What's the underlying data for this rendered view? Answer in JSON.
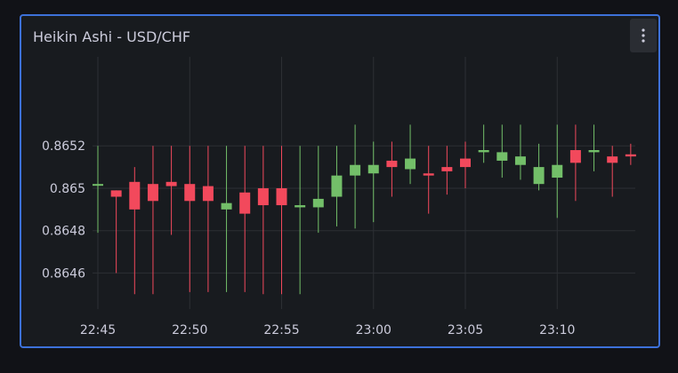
{
  "panel": {
    "title": "Heikin Ashi - USD/CHF",
    "menu_icon": "kebab-vertical-icon"
  },
  "colors": {
    "up": "#73bf69",
    "down": "#f2495c",
    "border_focus": "#3d71d9",
    "grid": "#2c2f34",
    "text": "#ccccdc"
  },
  "chart_data": {
    "type": "candlestick",
    "title": "Heikin Ashi - USD/CHF",
    "ylim": [
      0.86443,
      0.86562
    ],
    "yticks": [
      {
        "value": 0.8646,
        "label": "0.8646"
      },
      {
        "value": 0.8648,
        "label": "0.8648"
      },
      {
        "value": 0.865,
        "label": "0.865"
      },
      {
        "value": 0.8652,
        "label": "0.8652"
      }
    ],
    "xticks": [
      "22:45",
      "22:50",
      "22:55",
      "23:00",
      "23:05",
      "23:10"
    ],
    "grid": true,
    "candles": [
      {
        "time": "22:45",
        "open": 0.86502,
        "high": 0.8652,
        "low": 0.86479,
        "close": 0.86502
      },
      {
        "time": "22:46",
        "open": 0.86499,
        "high": 0.86499,
        "low": 0.8646,
        "close": 0.86496
      },
      {
        "time": "22:47",
        "open": 0.86503,
        "high": 0.8651,
        "low": 0.8645,
        "close": 0.8649
      },
      {
        "time": "22:48",
        "open": 0.86502,
        "high": 0.8652,
        "low": 0.8645,
        "close": 0.86494
      },
      {
        "time": "22:49",
        "open": 0.86503,
        "high": 0.8652,
        "low": 0.86478,
        "close": 0.86501
      },
      {
        "time": "22:50",
        "open": 0.86502,
        "high": 0.8652,
        "low": 0.86451,
        "close": 0.86494
      },
      {
        "time": "22:51",
        "open": 0.86501,
        "high": 0.8652,
        "low": 0.86451,
        "close": 0.86494
      },
      {
        "time": "22:52",
        "open": 0.8649,
        "high": 0.8652,
        "low": 0.86451,
        "close": 0.86493
      },
      {
        "time": "22:53",
        "open": 0.86498,
        "high": 0.8652,
        "low": 0.86451,
        "close": 0.86488
      },
      {
        "time": "22:54",
        "open": 0.865,
        "high": 0.8652,
        "low": 0.8645,
        "close": 0.86492
      },
      {
        "time": "22:55",
        "open": 0.865,
        "high": 0.8652,
        "low": 0.8645,
        "close": 0.86492
      },
      {
        "time": "22:56",
        "open": 0.86491,
        "high": 0.8652,
        "low": 0.8645,
        "close": 0.86492
      },
      {
        "time": "22:57",
        "open": 0.86491,
        "high": 0.8652,
        "low": 0.86479,
        "close": 0.86495
      },
      {
        "time": "22:58",
        "open": 0.86496,
        "high": 0.8652,
        "low": 0.86482,
        "close": 0.86506
      },
      {
        "time": "22:59",
        "open": 0.86506,
        "high": 0.8653,
        "low": 0.86481,
        "close": 0.86511
      },
      {
        "time": "23:00",
        "open": 0.86507,
        "high": 0.86522,
        "low": 0.86484,
        "close": 0.86511
      },
      {
        "time": "23:01",
        "open": 0.86513,
        "high": 0.86522,
        "low": 0.86496,
        "close": 0.8651
      },
      {
        "time": "23:02",
        "open": 0.86509,
        "high": 0.8653,
        "low": 0.86502,
        "close": 0.86514
      },
      {
        "time": "23:03",
        "open": 0.86507,
        "high": 0.8652,
        "low": 0.86488,
        "close": 0.86506
      },
      {
        "time": "23:04",
        "open": 0.8651,
        "high": 0.8652,
        "low": 0.86497,
        "close": 0.86508
      },
      {
        "time": "23:05",
        "open": 0.86514,
        "high": 0.86522,
        "low": 0.865,
        "close": 0.8651
      },
      {
        "time": "23:06",
        "open": 0.86517,
        "high": 0.8653,
        "low": 0.86512,
        "close": 0.86518
      },
      {
        "time": "23:07",
        "open": 0.86513,
        "high": 0.8653,
        "low": 0.86505,
        "close": 0.86517
      },
      {
        "time": "23:08",
        "open": 0.86511,
        "high": 0.8653,
        "low": 0.86504,
        "close": 0.86515
      },
      {
        "time": "23:09",
        "open": 0.86502,
        "high": 0.86521,
        "low": 0.86499,
        "close": 0.8651
      },
      {
        "time": "23:10",
        "open": 0.86505,
        "high": 0.8653,
        "low": 0.86486,
        "close": 0.86511
      },
      {
        "time": "23:11",
        "open": 0.86518,
        "high": 0.8653,
        "low": 0.86494,
        "close": 0.86512
      },
      {
        "time": "23:12",
        "open": 0.86517,
        "high": 0.8653,
        "low": 0.86508,
        "close": 0.86518
      },
      {
        "time": "23:13",
        "open": 0.86515,
        "high": 0.8652,
        "low": 0.86496,
        "close": 0.86512
      },
      {
        "time": "23:14",
        "open": 0.86516,
        "high": 0.86521,
        "low": 0.86511,
        "close": 0.86515
      }
    ]
  }
}
